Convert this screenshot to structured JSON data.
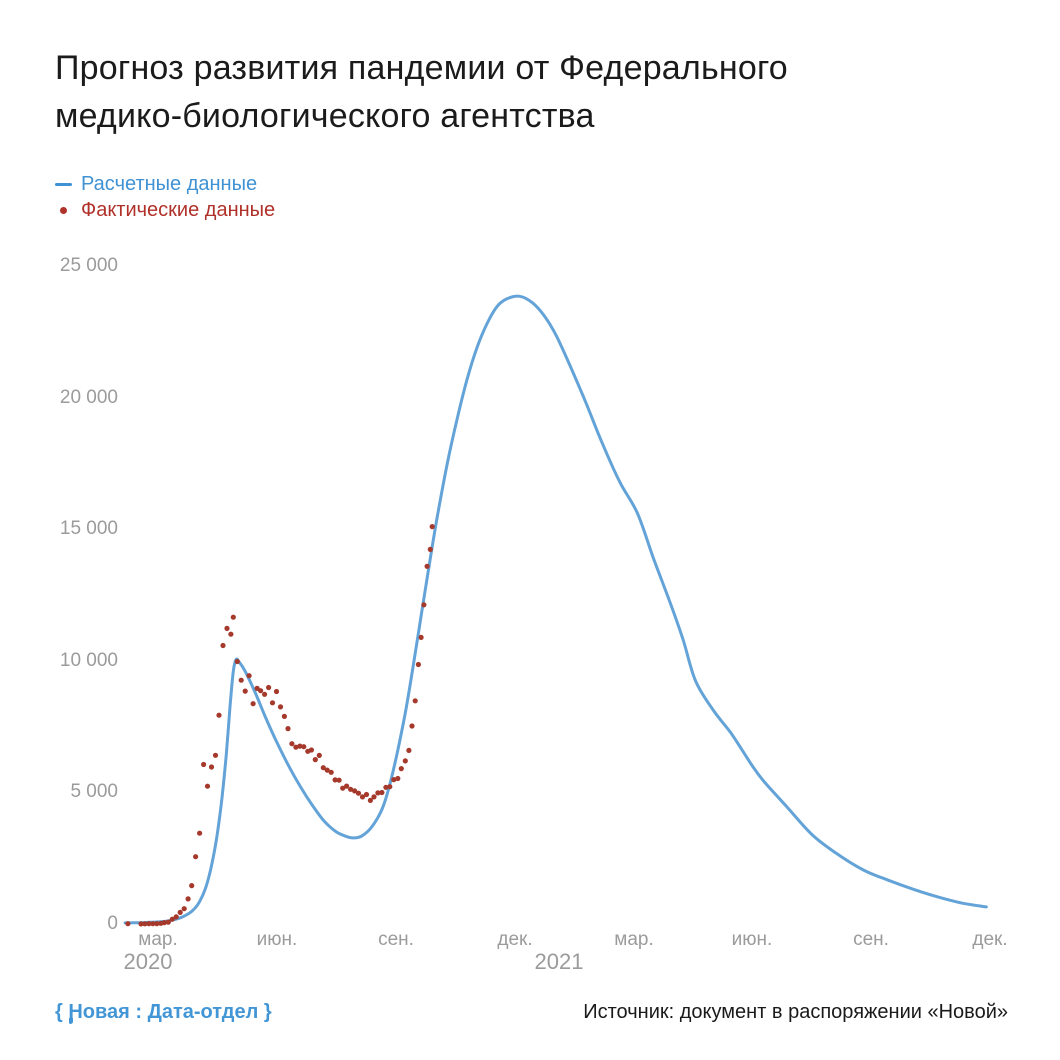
{
  "title": "Прогноз развития пандемии от Федерального медико-биологического агентства",
  "title_lines": [
    "Прогноз развития пандемии от Федерального",
    "медико-биологического агентства"
  ],
  "legend": {
    "computed": {
      "label": "Расчетные данные",
      "color": "#3f92d4",
      "marker": "line"
    },
    "actual": {
      "label": "Фактические данные",
      "color": "#b0312a",
      "marker": "dot"
    }
  },
  "footer": {
    "brand": "{ Новая : Дата-отдел }",
    "brand_color": "#4396d6",
    "source": "Источник: документ в распоряжении «Новой»"
  },
  "chart_data": {
    "type": "line+scatter",
    "title": "Прогноз развития пандемии от Федерального медико-биологического агентства",
    "x_axis": {
      "unit": "months relative to мар. 2020 tick (ticks at quarter months)",
      "ticks": [
        {
          "m": 0,
          "label": "мар."
        },
        {
          "m": 3,
          "label": "июн."
        },
        {
          "m": 6,
          "label": "сен."
        },
        {
          "m": 9,
          "label": "дек."
        },
        {
          "m": 12,
          "label": "мар."
        },
        {
          "m": 15,
          "label": "июн."
        },
        {
          "m": 18,
          "label": "сен."
        },
        {
          "m": 21,
          "label": "дек."
        }
      ],
      "year_labels": [
        {
          "m": -0.25,
          "label": "2020"
        },
        {
          "m": 10.12,
          "label": "2021"
        }
      ],
      "lim": [
        -1.0,
        21.6
      ],
      "grid": false
    },
    "y_axis": {
      "ticks": [
        {
          "v": 0,
          "label": "0"
        },
        {
          "v": 5000,
          "label": "5 000"
        },
        {
          "v": 10000,
          "label": "10 000"
        },
        {
          "v": 15000,
          "label": "15 000"
        },
        {
          "v": 20000,
          "label": "20 000"
        },
        {
          "v": 25000,
          "label": "25 000"
        }
      ],
      "lim": [
        0,
        25000
      ],
      "grid": false
    },
    "legend_position": "top-left",
    "series": [
      {
        "name": "Расчетные данные",
        "type": "line",
        "color": "#63a3d7",
        "stroke_width": 3,
        "points": [
          [
            -0.83,
            40
          ],
          [
            -0.5,
            50
          ],
          [
            -0.2,
            65
          ],
          [
            0,
            80
          ],
          [
            0.3,
            130
          ],
          [
            0.6,
            260
          ],
          [
            0.85,
            480
          ],
          [
            1.05,
            850
          ],
          [
            1.25,
            1600
          ],
          [
            1.45,
            3000
          ],
          [
            1.6,
            4600
          ],
          [
            1.72,
            6400
          ],
          [
            1.82,
            8300
          ],
          [
            1.9,
            9600
          ],
          [
            1.97,
            10050
          ],
          [
            2.05,
            9950
          ],
          [
            2.2,
            9600
          ],
          [
            2.45,
            8800
          ],
          [
            2.7,
            7900
          ],
          [
            3.0,
            6900
          ],
          [
            3.3,
            6000
          ],
          [
            3.6,
            5200
          ],
          [
            3.9,
            4500
          ],
          [
            4.2,
            3900
          ],
          [
            4.5,
            3500
          ],
          [
            4.75,
            3330
          ],
          [
            4.95,
            3270
          ],
          [
            5.15,
            3350
          ],
          [
            5.4,
            3700
          ],
          [
            5.65,
            4350
          ],
          [
            5.85,
            5300
          ],
          [
            6.05,
            6600
          ],
          [
            6.25,
            8100
          ],
          [
            6.45,
            9900
          ],
          [
            6.65,
            11800
          ],
          [
            6.85,
            13700
          ],
          [
            7.05,
            15500
          ],
          [
            7.3,
            17500
          ],
          [
            7.55,
            19200
          ],
          [
            7.8,
            20700
          ],
          [
            8.05,
            21900
          ],
          [
            8.3,
            22800
          ],
          [
            8.55,
            23450
          ],
          [
            8.8,
            23750
          ],
          [
            9.13,
            23850
          ],
          [
            9.45,
            23600
          ],
          [
            9.75,
            23100
          ],
          [
            10.05,
            22350
          ],
          [
            10.4,
            21200
          ],
          [
            10.8,
            19800
          ],
          [
            11.2,
            18300
          ],
          [
            11.65,
            16800
          ],
          [
            12.1,
            15600
          ],
          [
            12.5,
            13900
          ],
          [
            12.93,
            12180
          ],
          [
            13.25,
            10800
          ],
          [
            13.56,
            9250
          ],
          [
            14.0,
            8150
          ],
          [
            14.44,
            7290
          ],
          [
            14.7,
            6700
          ],
          [
            15.0,
            6000
          ],
          [
            15.3,
            5400
          ],
          [
            15.9,
            4400
          ],
          [
            16.5,
            3400
          ],
          [
            17.1,
            2700
          ],
          [
            17.8,
            2050
          ],
          [
            18.4,
            1680
          ],
          [
            19.1,
            1300
          ],
          [
            19.7,
            1020
          ],
          [
            20.3,
            790
          ],
          [
            20.9,
            650
          ]
        ]
      },
      {
        "name": "Фактические данные",
        "type": "scatter",
        "color": "#a5392b",
        "dot_radius": 2.6,
        "points": [
          [
            -0.76,
            10
          ],
          [
            -0.43,
            5
          ],
          [
            -0.33,
            8
          ],
          [
            -0.23,
            14
          ],
          [
            -0.13,
            11
          ],
          [
            -0.03,
            14
          ],
          [
            0.07,
            28
          ],
          [
            0.16,
            52
          ],
          [
            0.26,
            71
          ],
          [
            0.36,
            182
          ],
          [
            0.46,
            270
          ],
          [
            0.56,
            440
          ],
          [
            0.66,
            582
          ],
          [
            0.76,
            954
          ],
          [
            0.85,
            1459
          ],
          [
            0.95,
            2558
          ],
          [
            1.05,
            3448
          ],
          [
            1.15,
            6060
          ],
          [
            1.25,
            5236
          ],
          [
            1.35,
            5966
          ],
          [
            1.45,
            6411
          ],
          [
            1.54,
            7933
          ],
          [
            1.64,
            10581
          ],
          [
            1.74,
            11231
          ],
          [
            1.84,
            11012
          ],
          [
            1.9,
            11656
          ],
          [
            2.0,
            9974
          ],
          [
            2.1,
            9263
          ],
          [
            2.2,
            8849
          ],
          [
            2.3,
            9434
          ],
          [
            2.4,
            8371
          ],
          [
            2.5,
            8952
          ],
          [
            2.59,
            8863
          ],
          [
            2.69,
            8726
          ],
          [
            2.79,
            8985
          ],
          [
            2.89,
            8404
          ],
          [
            2.99,
            8835
          ],
          [
            3.09,
            8248
          ],
          [
            3.19,
            7889
          ],
          [
            3.28,
            7425
          ],
          [
            3.38,
            6852
          ],
          [
            3.48,
            6719
          ],
          [
            3.58,
            6760
          ],
          [
            3.68,
            6736
          ],
          [
            3.78,
            6562
          ],
          [
            3.87,
            6611
          ],
          [
            3.97,
            6248
          ],
          [
            4.07,
            6406
          ],
          [
            4.17,
            5940
          ],
          [
            4.27,
            5848
          ],
          [
            4.37,
            5765
          ],
          [
            4.47,
            5475
          ],
          [
            4.57,
            5462
          ],
          [
            4.66,
            5159
          ],
          [
            4.76,
            5241
          ],
          [
            4.86,
            5118
          ],
          [
            4.96,
            5057
          ],
          [
            5.06,
            4969
          ],
          [
            5.16,
            4828
          ],
          [
            5.26,
            4921
          ],
          [
            5.36,
            4696
          ],
          [
            5.45,
            4829
          ],
          [
            5.55,
            4980
          ],
          [
            5.65,
            4995
          ],
          [
            5.75,
            5195
          ],
          [
            5.85,
            5218
          ],
          [
            5.95,
            5488
          ],
          [
            6.05,
            5529
          ],
          [
            6.14,
            5905
          ],
          [
            6.24,
            6196
          ],
          [
            6.33,
            6595
          ],
          [
            6.41,
            7523
          ],
          [
            6.49,
            8481
          ],
          [
            6.57,
            9859
          ],
          [
            6.64,
            10888
          ],
          [
            6.71,
            12126
          ],
          [
            6.79,
            13592
          ],
          [
            6.87,
            14231
          ],
          [
            6.92,
            15099
          ]
        ]
      }
    ]
  }
}
